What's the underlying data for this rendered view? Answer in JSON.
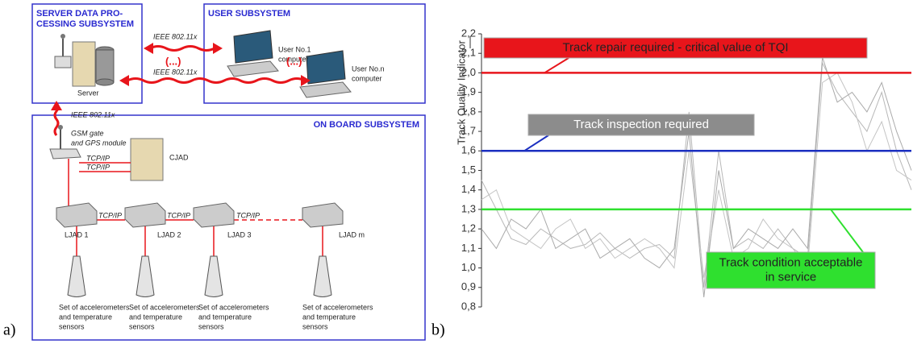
{
  "diagram": {
    "panel_label": "a)",
    "server_subsystem": {
      "title": [
        "SERVER DATA PRO-",
        "CESSING SUBSYSTEM"
      ],
      "server": "Server"
    },
    "user_subsystem": {
      "title": "USER SUBSYSTEM",
      "computer_1": [
        "User No.1",
        "computer"
      ],
      "computer_n": [
        "User No.n",
        "computer"
      ]
    },
    "links": [
      "IEEE 802.11x",
      "IEEE 802.11x",
      "IEEE 802.11x",
      "(...)",
      "(...)"
    ],
    "onboard_subsystem": {
      "title": "ON BOARD SUBSYSTEM",
      "gsm": [
        "GSM gate",
        "and GPS module"
      ],
      "cjad": "CJAD",
      "tcp_ip": [
        "TCP/IP",
        "TCP/IP",
        "TCP/IP",
        "TCP/IP",
        "TCP/IP"
      ],
      "ljad": [
        "LJAD 1",
        "LJAD 2",
        "LJAD 3",
        "LJAD m"
      ],
      "sensors": [
        [
          "Set of accelerometers",
          "and temperature",
          "sensors"
        ],
        [
          "Set of accelerometers",
          "and temperature",
          "sensors"
        ],
        [
          "Set of accelerometers",
          "and temperature",
          "sensors"
        ],
        [
          "Set of accelerometers",
          "and temperature",
          "sensors"
        ]
      ]
    }
  },
  "chart_data": {
    "type": "line",
    "panel_label": "b)",
    "y_label": "Track Quality Indicator",
    "categories": [
      null,
      null,
      null,
      null,
      null,
      null,
      null,
      null,
      null,
      null,
      null,
      null,
      null,
      null,
      null,
      null,
      null,
      null,
      null,
      null,
      null,
      null,
      null,
      null,
      null,
      null,
      null,
      null,
      null,
      null
    ],
    "series": [
      {
        "color": "#b8b8b8",
        "values": [
          1.45,
          1.3,
          1.15,
          1.12,
          1.2,
          1.15,
          1.1,
          1.12,
          1.18,
          1.1,
          1.05,
          1.1,
          1.12,
          1.05,
          1.8,
          0.9,
          1.6,
          1.1,
          1.15,
          1.1,
          1.2,
          1.1,
          1.05,
          2.05,
          1.9,
          1.8,
          1.7,
          1.9,
          1.6,
          1.4
        ]
      },
      {
        "color": "#c4c4c4",
        "values": [
          1.35,
          1.4,
          1.2,
          1.15,
          1.1,
          1.2,
          1.25,
          1.1,
          1.15,
          1.05,
          1.1,
          1.15,
          1.1,
          1.0,
          1.6,
          0.95,
          1.4,
          1.05,
          1.1,
          1.25,
          1.15,
          1.1,
          1.0,
          1.95,
          2.0,
          1.85,
          1.6,
          1.75,
          1.5,
          1.45
        ]
      },
      {
        "color": "#aaaaaa",
        "values": [
          1.2,
          1.1,
          1.25,
          1.2,
          1.3,
          1.1,
          1.15,
          1.2,
          1.05,
          1.1,
          1.15,
          1.05,
          1.0,
          1.1,
          1.7,
          0.85,
          1.5,
          1.1,
          1.2,
          1.15,
          1.1,
          1.2,
          1.1,
          2.08,
          1.85,
          1.9,
          1.8,
          1.95,
          1.7,
          1.5
        ]
      }
    ],
    "thresholds": [
      {
        "value": 2.0,
        "color": "#e8151b",
        "box_color": "#e8151b",
        "label": [
          "Track repair required - critical value of TQI"
        ]
      },
      {
        "value": 1.6,
        "color": "#1b2fc0",
        "box_color": "#8c8c8c",
        "label": [
          "Track inspection required"
        ]
      },
      {
        "value": 1.3,
        "color": "#2fe02f",
        "box_color": "#2fe02f",
        "label": [
          "Track condition acceptable",
          "in service"
        ]
      }
    ],
    "ylim": [
      0.8,
      2.2
    ],
    "yticks": [
      {
        "value": 0.8,
        "label": "0,8"
      },
      {
        "value": 0.9,
        "label": "0,9"
      },
      {
        "value": 1.0,
        "label": "1,0"
      },
      {
        "value": 1.1,
        "label": "1,1"
      },
      {
        "value": 1.2,
        "label": "1,2"
      },
      {
        "value": 1.3,
        "label": "1,3"
      },
      {
        "value": 1.4,
        "label": "1,4"
      },
      {
        "value": 1.5,
        "label": "1,5"
      },
      {
        "value": 1.6,
        "label": "1,6"
      },
      {
        "value": 1.7,
        "label": "1,7"
      },
      {
        "value": 1.8,
        "label": "1,8"
      },
      {
        "value": 1.9,
        "label": "1,9"
      },
      {
        "value": 2.0,
        "label": "2,0"
      },
      {
        "value": 2.1,
        "label": "2,1"
      },
      {
        "value": 2.2,
        "label": "2,2"
      }
    ]
  }
}
